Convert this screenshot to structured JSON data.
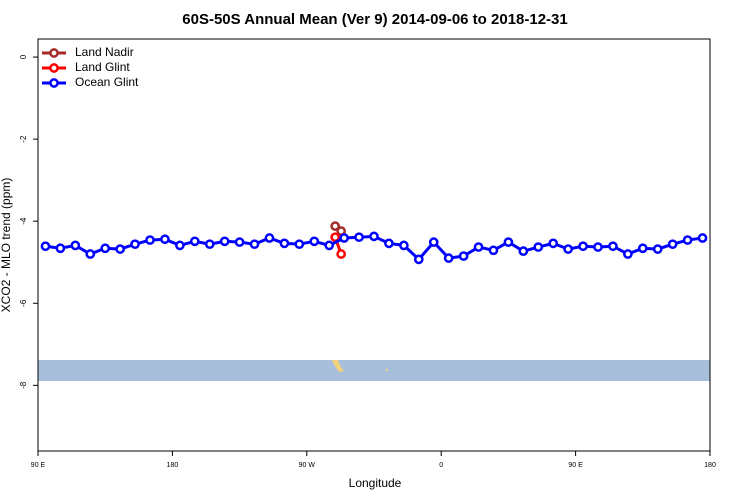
{
  "chart_data": {
    "type": "line",
    "title": "60S-50S Annual Mean (Ver 9)   2014-09-06 to 2018-12-31",
    "xlabel": "Longitude",
    "ylabel": "XCO2 - MLO trend (ppm)",
    "xlim": [
      90,
      540
    ],
    "ylim": [
      -9.6,
      0.44
    ],
    "xticks": [
      {
        "value": 90,
        "label": "90 E"
      },
      180,
      {
        "value": 270,
        "label": "90 W"
      },
      {
        "value": 360,
        "label": "0"
      },
      {
        "value": 450,
        "label": "90 E"
      },
      {
        "value": 540,
        "label": "180"
      }
    ],
    "yticks": [
      0,
      -2,
      -4,
      -6,
      -8
    ],
    "legend": "top-left",
    "series": [
      {
        "name": "Land Nadir",
        "color": "#a52a2a",
        "x": [
          289,
          293
        ],
        "values": [
          -4.12,
          -4.24
        ]
      },
      {
        "name": "Land Glint",
        "color": "#ff0000",
        "x": [
          289,
          293
        ],
        "values": [
          -4.39,
          -4.8
        ]
      },
      {
        "name": "Ocean Glint",
        "color": "#0000ff",
        "x": [
          95,
          105,
          115,
          125,
          135,
          145,
          155,
          165,
          175,
          185,
          195,
          205,
          215,
          225,
          235,
          245,
          255,
          265,
          275,
          285,
          295,
          305,
          315,
          325,
          335,
          345,
          355,
          365,
          375,
          385,
          395,
          405,
          415,
          425,
          435,
          445,
          455,
          465,
          475,
          485,
          495,
          505,
          515,
          525,
          535
        ],
        "values": [
          -4.61,
          -4.66,
          -4.59,
          -4.8,
          -4.66,
          -4.68,
          -4.56,
          -4.46,
          -4.44,
          -4.59,
          -4.49,
          -4.56,
          -4.49,
          -4.51,
          -4.56,
          -4.41,
          -4.54,
          -4.56,
          -4.49,
          -4.59,
          -4.41,
          -4.39,
          -4.37,
          -4.54,
          -4.59,
          -4.93,
          -4.51,
          -4.9,
          -4.85,
          -4.63,
          -4.71,
          -4.51,
          -4.73,
          -4.63,
          -4.54,
          -4.68,
          -4.61,
          -4.63,
          -4.61,
          -4.8,
          -4.66,
          -4.68,
          -4.56,
          -4.46,
          -4.41
        ]
      }
    ]
  }
}
